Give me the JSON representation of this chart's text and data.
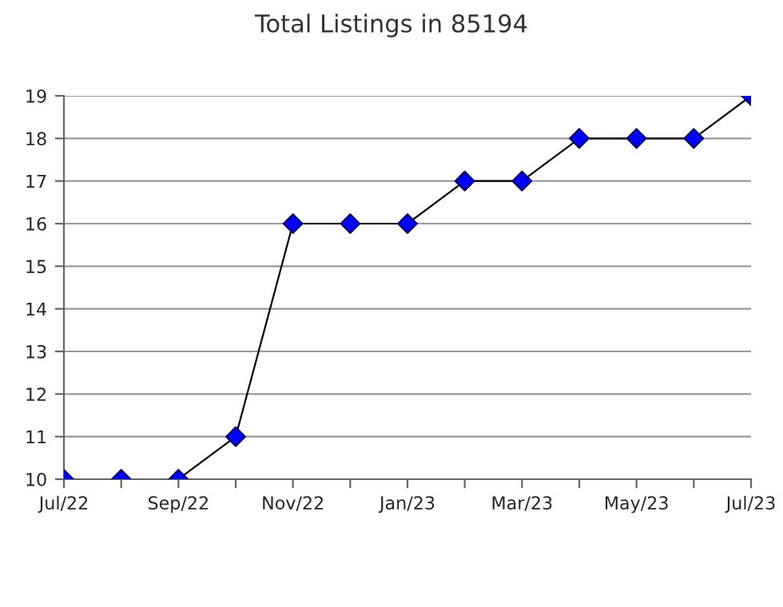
{
  "chart_data": {
    "type": "line",
    "title": "Total Listings in 85194",
    "categories": [
      "Jul/22",
      null,
      "Sep/22",
      null,
      "Nov/22",
      null,
      "Jan/23",
      null,
      "Mar/23",
      null,
      "May/23",
      null,
      "Jul/23"
    ],
    "series": [
      {
        "color": "#0000ff",
        "values": [
          10,
          10,
          10,
          11,
          16,
          16,
          16,
          17,
          17,
          18,
          18,
          18,
          19
        ]
      }
    ],
    "ylim": [
      10,
      19
    ],
    "yticks": [
      10,
      11,
      12,
      13,
      14,
      15,
      16,
      17,
      18,
      19
    ],
    "grid": "y",
    "marker": "diamond",
    "line_style": "solid",
    "legend": false
  }
}
